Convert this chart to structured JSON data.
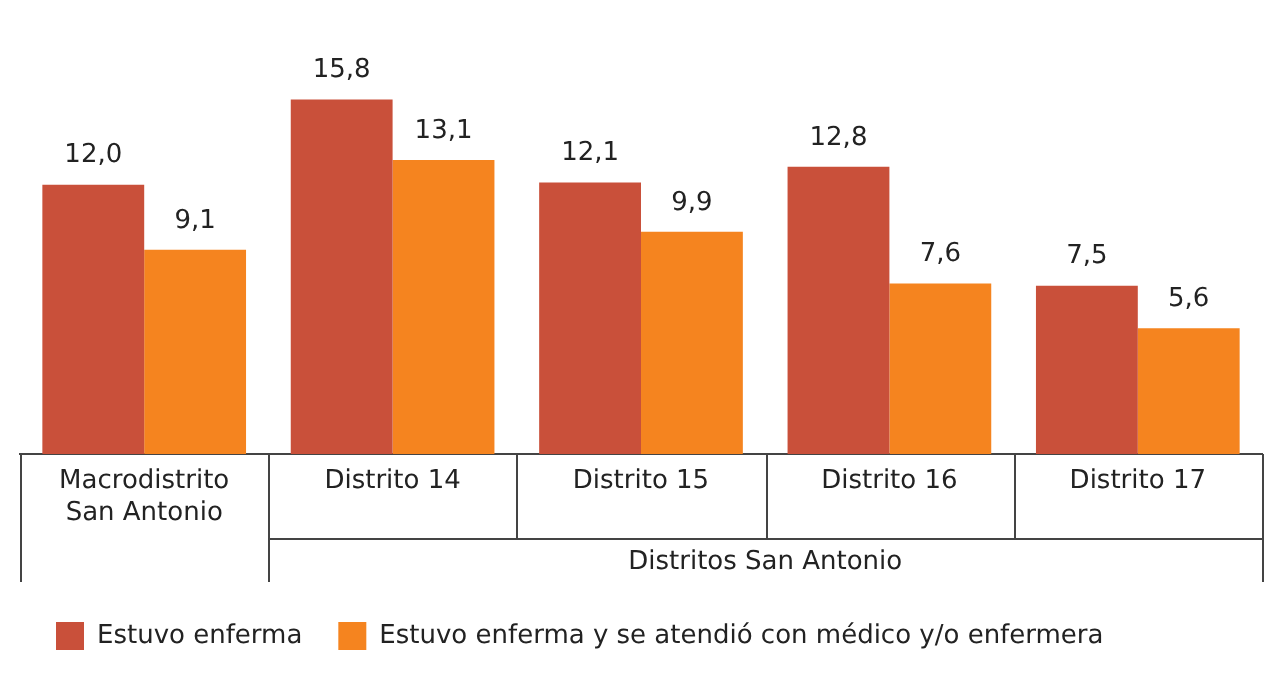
{
  "chart_data": {
    "type": "bar",
    "categories": [
      "Macrodistrito San Antonio",
      "Distrito 14",
      "Distrito 15",
      "Distrito 16",
      "Distrito 17"
    ],
    "series": [
      {
        "name": "Estuvo enferma",
        "color": "#c9503a",
        "values": [
          12.0,
          15.8,
          12.1,
          12.8,
          7.5
        ],
        "value_labels": [
          "12,0",
          "15,8",
          "12,1",
          "12,8",
          "7,5"
        ]
      },
      {
        "name": "Estuvo enferma y se atendió con médico y/o enfermera",
        "color": "#f5841f",
        "values": [
          9.1,
          13.1,
          9.9,
          7.6,
          5.6
        ],
        "value_labels": [
          "9,1",
          "13,1",
          "9,9",
          "7,6",
          "5,6"
        ]
      }
    ],
    "annotations": [
      "Distritos San Antonio"
    ],
    "legend": "bottom left"
  }
}
